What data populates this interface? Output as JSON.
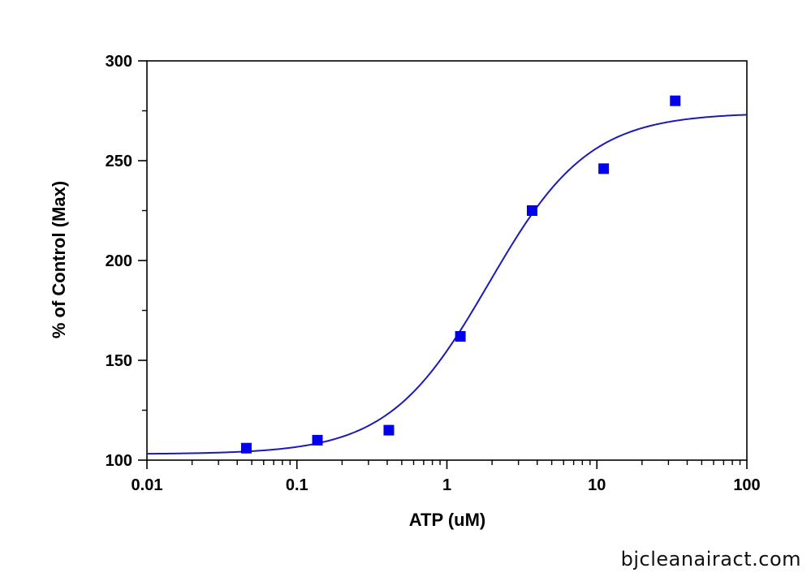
{
  "chart_data": {
    "type": "scatter",
    "title": "",
    "xlabel": "ATP (uM)",
    "ylabel": "% of Control (Max)",
    "x_scale": "log",
    "xlim": [
      0.01,
      100
    ],
    "ylim": [
      100,
      300
    ],
    "x_ticks": [
      0.01,
      0.1,
      1,
      10,
      100
    ],
    "x_tick_labels": [
      "0.01",
      "0.1",
      "1",
      "10",
      "100"
    ],
    "y_ticks": [
      100,
      150,
      200,
      250,
      300
    ],
    "y_tick_labels": [
      "100",
      "150",
      "200",
      "250",
      "300"
    ],
    "grid": false,
    "series": [
      {
        "type": "scatter",
        "marker": "square",
        "color": "#0000ee",
        "x": [
          0.046,
          0.137,
          0.41,
          1.23,
          3.7,
          11.1,
          33.3
        ],
        "y": [
          106,
          110,
          115,
          162,
          225,
          246,
          280
        ]
      },
      {
        "type": "line",
        "color": "#1a1ab8",
        "fit": "sigmoidal dose-response",
        "bottom": 103,
        "top": 274,
        "ec50": 1.9,
        "hill": 1.3
      }
    ]
  },
  "watermark": "bjcleanairact.com"
}
